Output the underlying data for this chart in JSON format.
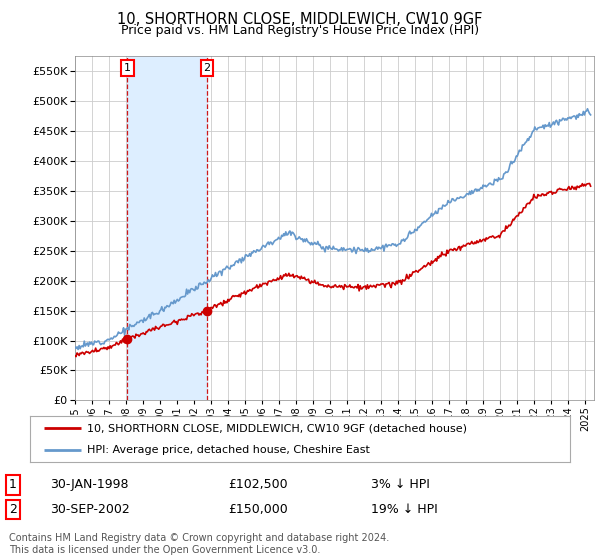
{
  "title": "10, SHORTHORN CLOSE, MIDDLEWICH, CW10 9GF",
  "subtitle": "Price paid vs. HM Land Registry's House Price Index (HPI)",
  "legend_line1": "10, SHORTHORN CLOSE, MIDDLEWICH, CW10 9GF (detached house)",
  "legend_line2": "HPI: Average price, detached house, Cheshire East",
  "annotation1_label": "1",
  "annotation1_date": "30-JAN-1998",
  "annotation1_price": "£102,500",
  "annotation1_hpi": "3% ↓ HPI",
  "annotation2_label": "2",
  "annotation2_date": "30-SEP-2002",
  "annotation2_price": "£150,000",
  "annotation2_hpi": "19% ↓ HPI",
  "footer": "Contains HM Land Registry data © Crown copyright and database right 2024.\nThis data is licensed under the Open Government Licence v3.0.",
  "price_color": "#cc0000",
  "hpi_color": "#6699cc",
  "shade_color": "#ddeeff",
  "background_color": "#ffffff",
  "plot_bg_color": "#ffffff",
  "grid_color": "#cccccc",
  "ylim": [
    0,
    575000
  ],
  "yticks": [
    0,
    50000,
    100000,
    150000,
    200000,
    250000,
    300000,
    350000,
    400000,
    450000,
    500000,
    550000
  ],
  "xlim_start": 1995.0,
  "xlim_end": 2025.5,
  "sale1_year": 1998.08,
  "sale2_year": 2002.75,
  "sale1_price": 102500,
  "sale2_price": 150000
}
